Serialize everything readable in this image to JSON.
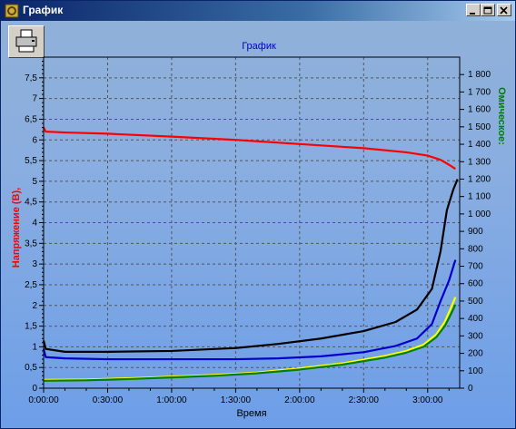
{
  "window": {
    "title": "График"
  },
  "toolbar": {
    "print_icon": "printer-icon"
  },
  "chart_data": {
    "type": "line",
    "title": "График",
    "xlabel": "Время",
    "ylabel_left": "Напряжение (В),",
    "ylabel_right": "Омическое:",
    "x_ticks": [
      "0:00:00",
      "0:30:00",
      "1:00:00",
      "1:30:00",
      "2:00:00",
      "2:30:00",
      "3:00:00"
    ],
    "y_left_ticks": [
      "0",
      "0,5",
      "1",
      "1,5",
      "2",
      "2,5",
      "3",
      "3,5",
      "4",
      "4,5",
      "5",
      "5,5",
      "6",
      "6,5",
      "7",
      "7,5"
    ],
    "y_right_ticks": [
      "0",
      "100",
      "200",
      "300",
      "400",
      "500",
      "600",
      "700",
      "800",
      "900",
      "1 000",
      "1 100",
      "1 200",
      "1 300",
      "1 400",
      "1 500",
      "1 600",
      "1 700",
      "1 800"
    ],
    "xlim_minutes": [
      0,
      195
    ],
    "ylim_left": [
      0,
      8
    ],
    "ylim_right": [
      0,
      1900
    ],
    "grid": true,
    "series": [
      {
        "color": "#ff0000",
        "axis": "left",
        "points": [
          [
            0,
            6.3
          ],
          [
            1,
            6.2
          ],
          [
            10,
            6.18
          ],
          [
            30,
            6.15
          ],
          [
            60,
            6.08
          ],
          [
            90,
            6.0
          ],
          [
            120,
            5.9
          ],
          [
            150,
            5.8
          ],
          [
            170,
            5.7
          ],
          [
            180,
            5.62
          ],
          [
            186,
            5.52
          ],
          [
            190,
            5.4
          ],
          [
            193,
            5.3
          ]
        ]
      },
      {
        "color": "#000000",
        "axis": "left",
        "points": [
          [
            0,
            1.15
          ],
          [
            1,
            0.95
          ],
          [
            10,
            0.88
          ],
          [
            30,
            0.88
          ],
          [
            60,
            0.9
          ],
          [
            90,
            0.97
          ],
          [
            110,
            1.07
          ],
          [
            130,
            1.2
          ],
          [
            150,
            1.38
          ],
          [
            165,
            1.6
          ],
          [
            175,
            1.9
          ],
          [
            182,
            2.4
          ],
          [
            186,
            3.3
          ],
          [
            189,
            4.3
          ],
          [
            192,
            4.8
          ],
          [
            194,
            5.05
          ]
        ]
      },
      {
        "color": "#0000cc",
        "axis": "left",
        "points": [
          [
            0,
            0.95
          ],
          [
            1,
            0.75
          ],
          [
            10,
            0.72
          ],
          [
            30,
            0.7
          ],
          [
            60,
            0.7
          ],
          [
            90,
            0.7
          ],
          [
            110,
            0.72
          ],
          [
            130,
            0.77
          ],
          [
            150,
            0.87
          ],
          [
            165,
            1.02
          ],
          [
            175,
            1.2
          ],
          [
            182,
            1.55
          ],
          [
            186,
            2.1
          ],
          [
            190,
            2.6
          ],
          [
            193,
            3.1
          ]
        ]
      },
      {
        "color": "#ffff00",
        "axis": "left",
        "points": [
          [
            0,
            0.2
          ],
          [
            20,
            0.21
          ],
          [
            40,
            0.24
          ],
          [
            60,
            0.28
          ],
          [
            80,
            0.32
          ],
          [
            100,
            0.38
          ],
          [
            120,
            0.48
          ],
          [
            140,
            0.6
          ],
          [
            160,
            0.78
          ],
          [
            170,
            0.9
          ],
          [
            178,
            1.05
          ],
          [
            184,
            1.3
          ],
          [
            188,
            1.6
          ],
          [
            191,
            1.95
          ],
          [
            193,
            2.2
          ]
        ]
      },
      {
        "color": "#008000",
        "axis": "left",
        "points": [
          [
            0,
            0.18
          ],
          [
            20,
            0.19
          ],
          [
            40,
            0.22
          ],
          [
            60,
            0.26
          ],
          [
            80,
            0.3
          ],
          [
            100,
            0.36
          ],
          [
            120,
            0.45
          ],
          [
            140,
            0.57
          ],
          [
            160,
            0.74
          ],
          [
            170,
            0.86
          ],
          [
            178,
            1.0
          ],
          [
            184,
            1.23
          ],
          [
            188,
            1.5
          ],
          [
            191,
            1.8
          ],
          [
            193,
            2.02
          ]
        ]
      }
    ]
  }
}
